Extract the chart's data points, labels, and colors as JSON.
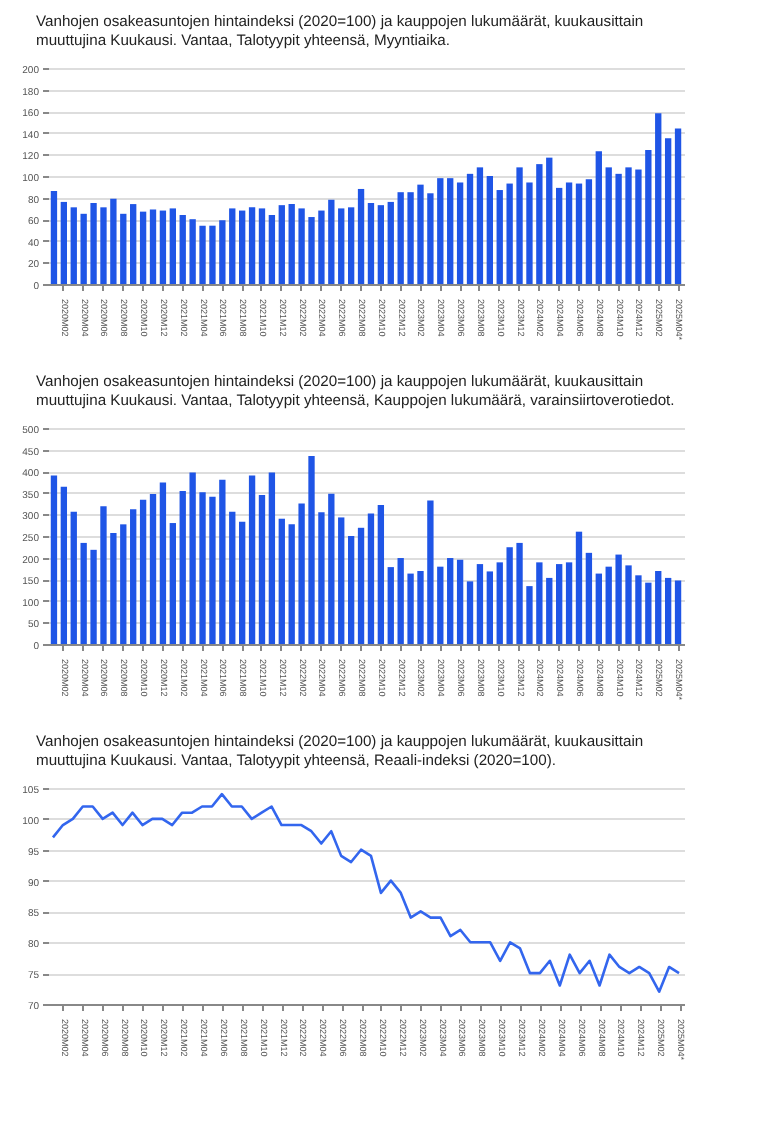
{
  "chart_data": [
    {
      "type": "bar",
      "title": "Vanhojen osakeasuntojen hintaindeksi (2020=100) ja kauppojen lukumäärät, kuukausittain muuttujina Kuukausi. Vantaa, Talotyypit yhteensä, Myyntiaika.",
      "categories": [
        null,
        "2020M02",
        null,
        "2020M04",
        null,
        "2020M06",
        null,
        "2020M08",
        null,
        "2020M10",
        null,
        "2020M12",
        null,
        "2021M02",
        null,
        "2021M04",
        null,
        "2021M06",
        null,
        "2021M08",
        null,
        "2021M10",
        null,
        "2021M12",
        null,
        "2022M02",
        null,
        "2022M04",
        null,
        "2022M06",
        null,
        "2022M08",
        null,
        "2022M10",
        null,
        "2022M12",
        null,
        "2023M02",
        null,
        "2023M04",
        null,
        "2023M06",
        null,
        "2023M08",
        null,
        "2023M10",
        null,
        "2023M12",
        null,
        "2024M02",
        null,
        "2024M04",
        null,
        "2024M06",
        null,
        "2024M08",
        null,
        "2024M10",
        null,
        "2024M12",
        null,
        "2025M02",
        null,
        "2025M04*"
      ],
      "values": [
        86,
        76,
        71,
        65,
        75,
        71,
        79,
        65,
        74,
        67,
        69,
        68,
        70,
        64,
        60,
        54,
        54,
        59,
        70,
        68,
        71,
        70,
        64,
        73,
        74,
        70,
        62,
        68,
        78,
        70,
        71,
        88,
        75,
        73,
        76,
        85,
        85,
        92,
        84,
        98,
        98,
        94,
        102,
        108,
        100,
        87,
        93,
        108,
        94,
        111,
        117,
        89,
        94,
        93,
        97,
        123,
        108,
        102,
        108,
        106,
        124,
        158,
        135,
        144
      ],
      "color": "#1f55e6",
      "ylim": [
        0,
        200
      ],
      "yticks": [
        0,
        20,
        40,
        60,
        80,
        100,
        120,
        140,
        160,
        180,
        200
      ],
      "grid": "y"
    },
    {
      "type": "bar",
      "title": "Vanhojen osakeasuntojen hintaindeksi (2020=100) ja kauppojen lukumäärät, kuukausittain muuttujina Kuukausi. Vantaa, Talotyypit yhteensä, Kauppojen lukumäärä, varainsiirtoverotiedot.",
      "categories": [
        null,
        "2020M02",
        null,
        "2020M04",
        null,
        "2020M06",
        null,
        "2020M08",
        null,
        "2020M10",
        null,
        "2020M12",
        null,
        "2021M02",
        null,
        "2021M04",
        null,
        "2021M06",
        null,
        "2021M08",
        null,
        "2021M10",
        null,
        "2021M12",
        null,
        "2022M02",
        null,
        "2022M04",
        null,
        "2022M06",
        null,
        "2022M08",
        null,
        "2022M10",
        null,
        "2022M12",
        null,
        "2023M02",
        null,
        "2023M04",
        null,
        "2023M06",
        null,
        "2023M08",
        null,
        "2023M10",
        null,
        "2023M12",
        null,
        "2024M02",
        null,
        "2024M04",
        null,
        "2024M06",
        null,
        "2024M08",
        null,
        "2024M10",
        null,
        "2024M12",
        null,
        "2025M02",
        null,
        "2025M04*"
      ],
      "values": [
        390,
        364,
        306,
        234,
        218,
        319,
        257,
        277,
        312,
        334,
        347,
        374,
        280,
        354,
        397,
        351,
        341,
        380,
        306,
        283,
        390,
        345,
        397,
        290,
        277,
        325,
        435,
        305,
        348,
        293,
        250,
        269,
        302,
        322,
        178,
        199,
        163,
        169,
        332,
        179,
        199,
        195,
        145,
        185,
        168,
        189,
        224,
        234,
        134,
        189,
        153,
        185,
        189,
        260,
        211,
        163,
        179,
        207,
        182,
        159,
        142,
        169,
        153,
        147
      ],
      "color": "#1f55e6",
      "ylim": [
        0,
        500
      ],
      "yticks": [
        0,
        50,
        100,
        150,
        200,
        250,
        300,
        350,
        400,
        450,
        500
      ],
      "grid": "y"
    },
    {
      "type": "line",
      "title": "Vanhojen osakeasuntojen hintaindeksi (2020=100) ja kauppojen lukumäärät, kuukausittain muuttujina Kuukausi. Vantaa, Talotyypit yhteensä, Reaali-indeksi (2020=100).",
      "categories": [
        null,
        "2020M02",
        null,
        "2020M04",
        null,
        "2020M06",
        null,
        "2020M08",
        null,
        "2020M10",
        null,
        "2020M12",
        null,
        "2021M02",
        null,
        "2021M04",
        null,
        "2021M06",
        null,
        "2021M08",
        null,
        "2021M10",
        null,
        "2021M12",
        null,
        "2022M02",
        null,
        "2022M04",
        null,
        "2022M06",
        null,
        "2022M08",
        null,
        "2022M10",
        null,
        "2022M12",
        null,
        "2023M02",
        null,
        "2023M04",
        null,
        "2023M06",
        null,
        "2023M08",
        null,
        "2023M10",
        null,
        "2023M12",
        null,
        "2024M02",
        null,
        "2024M04",
        null,
        "2024M06",
        null,
        "2024M08",
        null,
        "2024M10",
        null,
        "2024M12",
        null,
        "2025M02",
        null,
        "2025M04*"
      ],
      "values": [
        97,
        99,
        100,
        102,
        102,
        100,
        101,
        99,
        101,
        99,
        100,
        100,
        99,
        101,
        101,
        102,
        102,
        104,
        102,
        102,
        100,
        101,
        102,
        99,
        99,
        99,
        98,
        96,
        98,
        94,
        93,
        95,
        94,
        88,
        90,
        88,
        84,
        85,
        84,
        84,
        81,
        82,
        80,
        80,
        80,
        77,
        80,
        79,
        75,
        75,
        77,
        73,
        78,
        75,
        77,
        73,
        78,
        76,
        75,
        76,
        75,
        72,
        76,
        75
      ],
      "color": "#3366ee",
      "ylim": [
        70,
        105
      ],
      "yticks": [
        70,
        75,
        80,
        85,
        90,
        95,
        100,
        105
      ],
      "grid": "y",
      "marker": "none"
    }
  ]
}
